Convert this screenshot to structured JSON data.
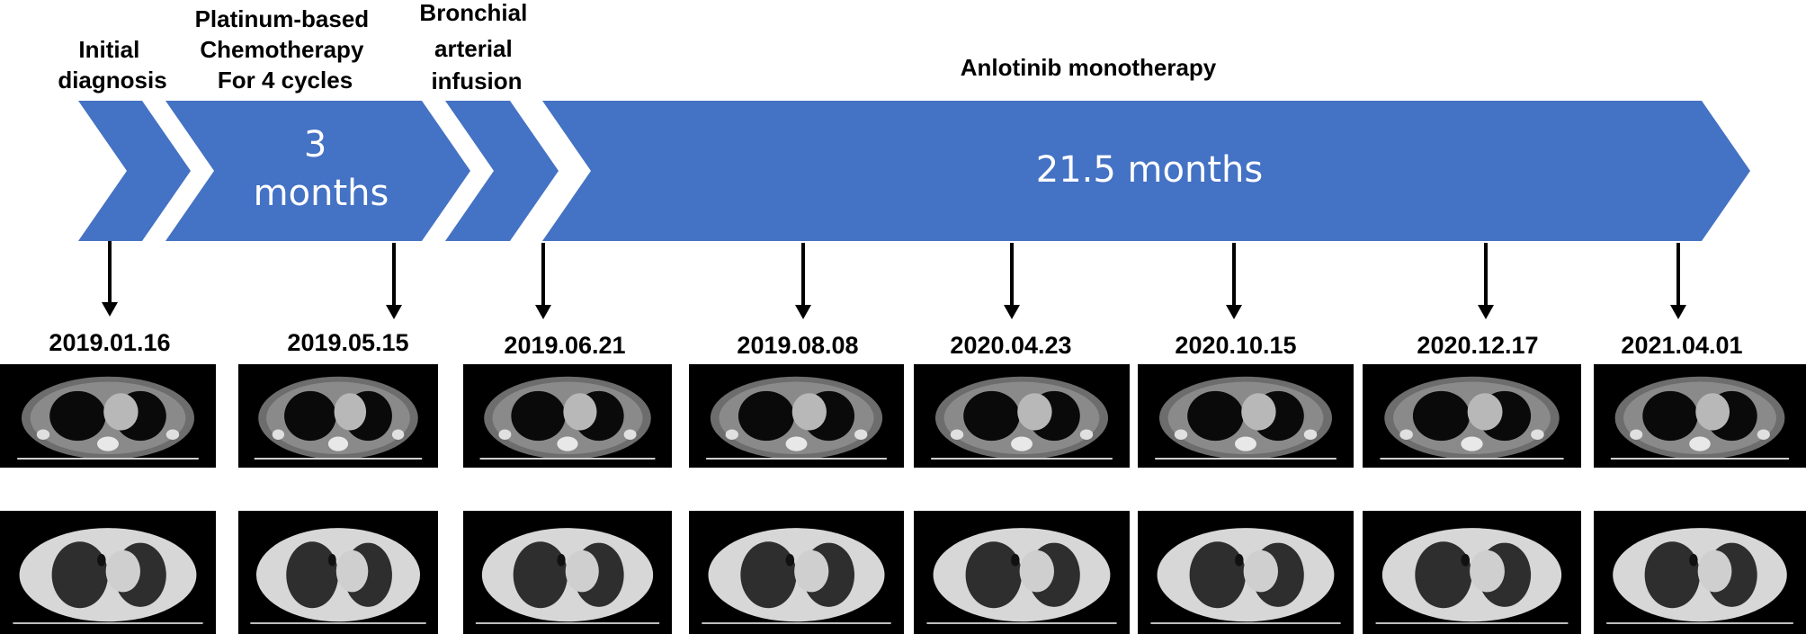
{
  "colors": {
    "arrow_fill": "#4472c4",
    "text": "#000000",
    "duration_text": "#ffffff",
    "scan_background": "#000000"
  },
  "phases": [
    {
      "label_lines": [
        "Initial",
        "diagnosis"
      ]
    },
    {
      "label_lines": [
        "Platinum-based",
        "Chemotherapy",
        "For 4 cycles"
      ],
      "duration_lines": [
        "3",
        "months"
      ]
    },
    {
      "label_lines": [
        "Bronchial",
        "arterial",
        "infusion"
      ]
    },
    {
      "label_lines": [
        "Anlotinib monotherapy"
      ],
      "duration_lines": [
        "21.5 months"
      ]
    }
  ],
  "timepoints": [
    {
      "date": "2019.01.16"
    },
    {
      "date": "2019.05.15"
    },
    {
      "date": "2019.06.21"
    },
    {
      "date": "2019.08.08"
    },
    {
      "date": "2020.04.23"
    },
    {
      "date": "2020.10.15"
    },
    {
      "date": "2020.12.17"
    },
    {
      "date": "2021.04.01"
    }
  ],
  "image_rows": [
    {
      "window": "mediastinal",
      "icon": "ct-scan-mediastinal-icon"
    },
    {
      "window": "lung",
      "icon": "ct-scan-lung-icon"
    }
  ]
}
